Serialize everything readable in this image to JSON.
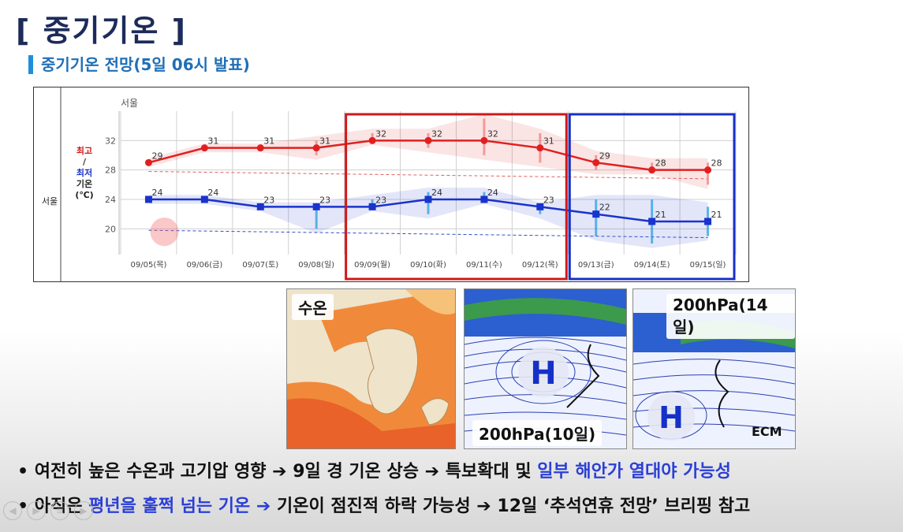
{
  "slide": {
    "title": "[ 중기기온 ]",
    "subtitle": "중기기온 전망(5일 06시 발표)"
  },
  "chart_data": {
    "type": "line",
    "title": "서울",
    "row_label": "서울",
    "ylabel_high": "최고",
    "ylabel_sep": "/",
    "ylabel_low": "최저",
    "ylabel_unit1": "기온",
    "ylabel_unit2": "(℃)",
    "categories": [
      "09/05(목)",
      "09/06(금)",
      "09/07(토)",
      "09/08(일)",
      "09/09(월)",
      "09/10(화)",
      "09/11(수)",
      "09/12(목)",
      "09/13(금)",
      "09/14(토)",
      "09/15(일)"
    ],
    "y_ticks": [
      20,
      24,
      28,
      32
    ],
    "ylim": [
      16.5,
      36
    ],
    "series": [
      {
        "name": "최고",
        "color": "#e02020",
        "values": [
          29,
          31,
          31,
          31,
          32,
          32,
          32,
          31,
          29,
          28,
          28
        ],
        "start_index": 0
      },
      {
        "name": "최저",
        "color": "#1a33cc",
        "values": [
          24,
          24,
          23,
          23,
          23,
          24,
          24,
          23,
          22,
          21,
          21
        ],
        "start_index": 0
      }
    ],
    "normal_high": [
      27.8,
      27.7,
      27.6,
      27.5,
      27.4,
      27.3,
      27.2,
      27.1,
      27.0,
      26.9,
      26.8
    ],
    "normal_low": [
      19.8,
      19.7,
      19.6,
      19.5,
      19.4,
      19.3,
      19.2,
      19.1,
      19.0,
      18.9,
      18.8
    ],
    "high_range": [
      [
        0,
        0
      ],
      [
        0,
        0
      ],
      [
        0,
        0
      ],
      [
        1,
        1
      ],
      [
        1,
        0
      ],
      [
        1,
        1
      ],
      [
        3,
        2
      ],
      [
        2,
        2
      ],
      [
        1,
        1
      ],
      [
        1,
        0
      ],
      [
        1,
        2
      ]
    ],
    "low_range": [
      [
        0,
        0
      ],
      [
        0,
        0
      ],
      [
        0,
        0
      ],
      [
        0,
        3
      ],
      [
        1,
        0
      ],
      [
        1,
        2
      ],
      [
        1,
        0
      ],
      [
        0,
        1
      ],
      [
        2,
        3
      ],
      [
        3,
        3
      ],
      [
        2,
        2
      ]
    ],
    "highlight_red": [
      4,
      7
    ],
    "highlight_blue": [
      8,
      10
    ],
    "grid": true
  },
  "images": [
    {
      "label": "수온"
    },
    {
      "label": "200hPa(10일)",
      "marker": "H"
    },
    {
      "label": "200hPa(14일)",
      "marker": "H",
      "tag": "ECM"
    }
  ],
  "bullets": [
    {
      "dot": "•",
      "parts": [
        {
          "text": "여전히 높은 수온과 고기압 영향 ",
          "hl": false
        },
        {
          "text": "➔",
          "hl": false
        },
        {
          "text": " 9일 경 기온 상승 ",
          "hl": false
        },
        {
          "text": "➔",
          "hl": false
        },
        {
          "text": " 특보확대 및 ",
          "hl": false
        },
        {
          "text": "일부 해안가 열대야 가능성",
          "hl": true
        }
      ]
    },
    {
      "dot": "•",
      "parts": [
        {
          "text": "아직은 ",
          "hl": false
        },
        {
          "text": "평년을 훌쩍 넘는 기온 ➔",
          "hl": true
        },
        {
          "text": " 기온이 점진적 하락 가능성 ",
          "hl": false
        },
        {
          "text": "➔",
          "hl": false
        },
        {
          "text": " 12일 ‘추석연휴 전망’ 브리핑 참고",
          "hl": false
        }
      ]
    }
  ]
}
